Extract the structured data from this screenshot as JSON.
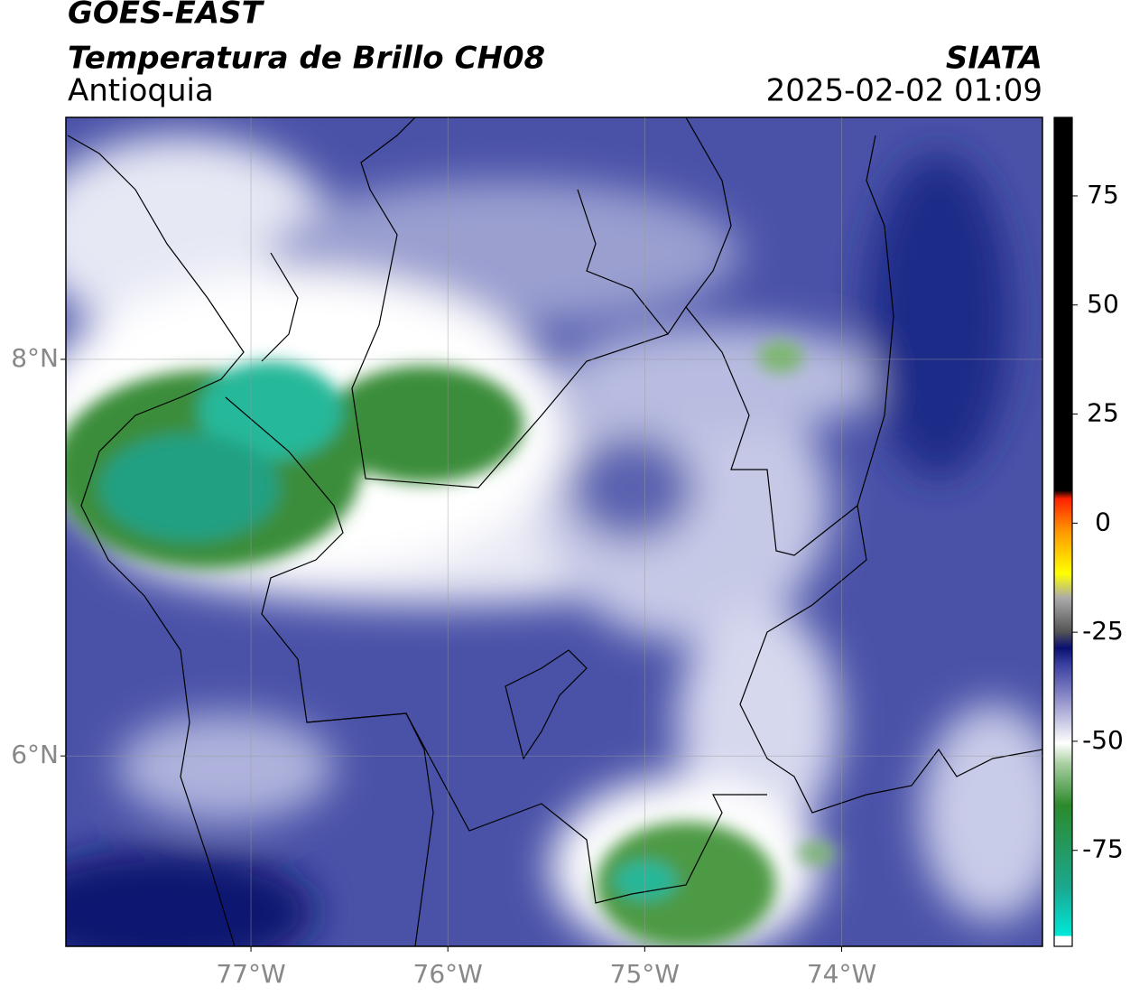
{
  "header": {
    "satellite": "GOES-EAST",
    "product": "Temperatura de Brillo CH08",
    "region": "Antioquia",
    "source": "SIATA",
    "datetime": "2025-02-02 01:09"
  },
  "map": {
    "xlim": [
      -77.94,
      -72.98
    ],
    "ylim": [
      5.04,
      9.22
    ],
    "xticks": [
      {
        "value": -77,
        "label": "77°W"
      },
      {
        "value": -76,
        "label": "76°W"
      },
      {
        "value": -75,
        "label": "75°W"
      },
      {
        "value": -74,
        "label": "74°W"
      }
    ],
    "yticks": [
      {
        "value": 8,
        "label": "8°N"
      },
      {
        "value": 6,
        "label": "6°N"
      }
    ],
    "grid": true
  },
  "colorbar": {
    "lim": [
      -97,
      93
    ],
    "ticks": [
      75,
      50,
      25,
      0,
      -25,
      -50,
      -75
    ]
  }
}
